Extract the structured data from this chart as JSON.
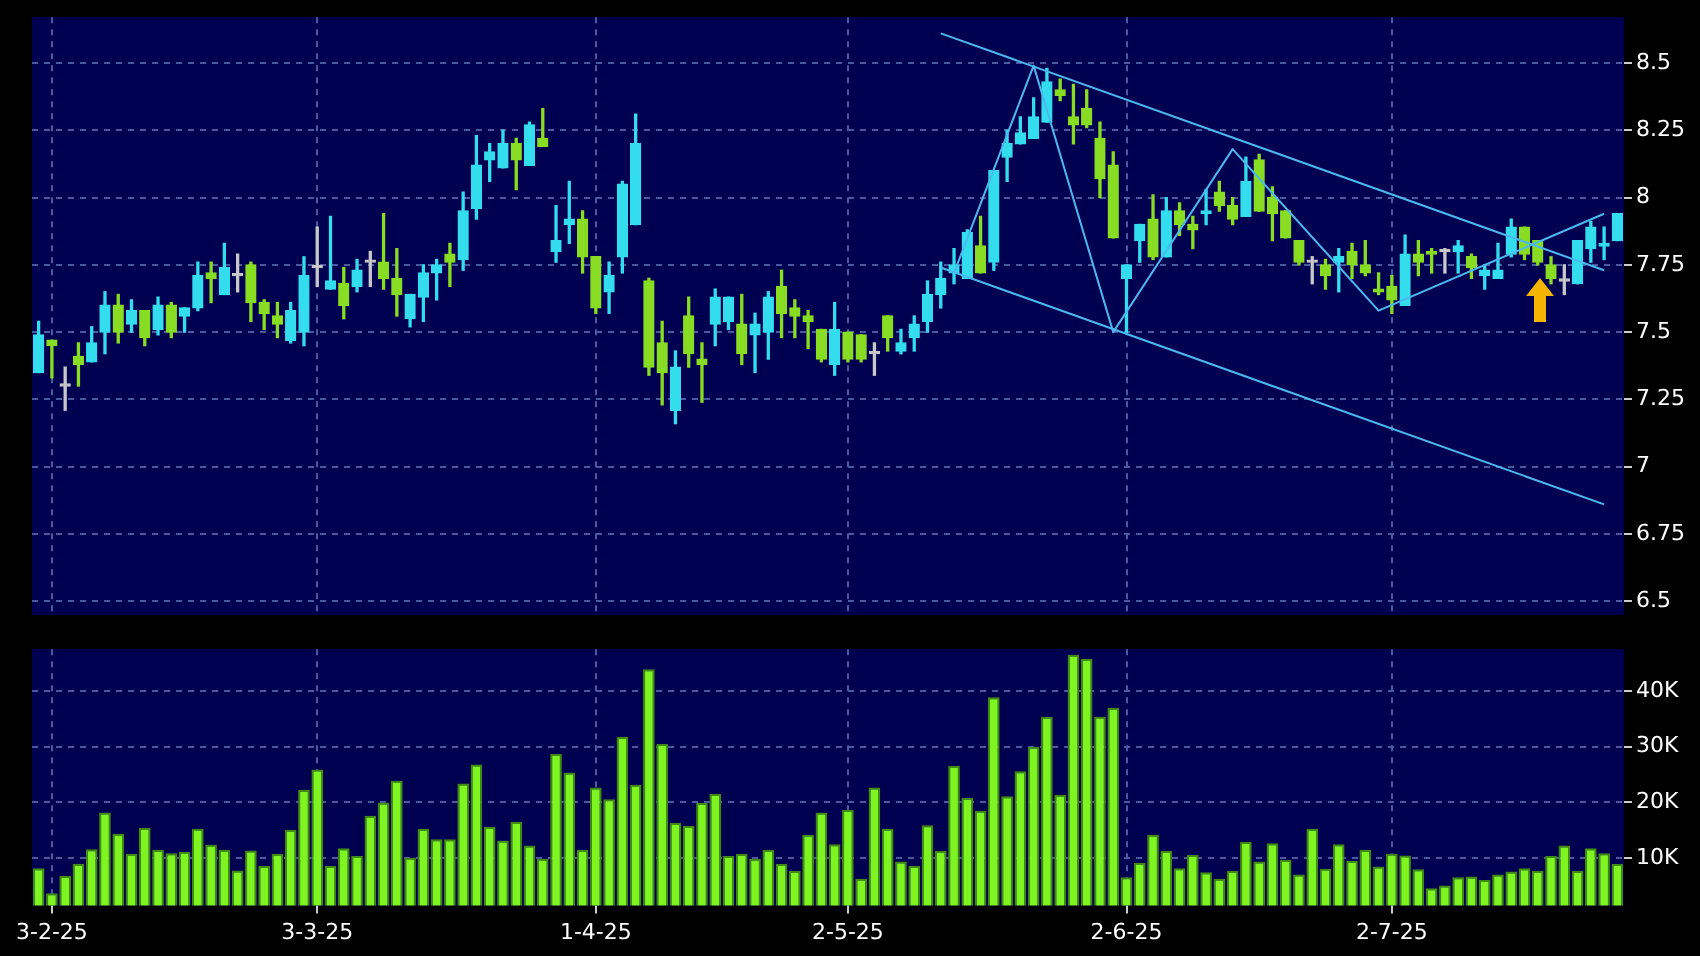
{
  "chart_data": [
    {
      "type": "candlestick",
      "categories": [
        null,
        null,
        null,
        null,
        null,
        null,
        null,
        null,
        null,
        null,
        null,
        null,
        null,
        null,
        null,
        null,
        null,
        null,
        null,
        null,
        null,
        null,
        null,
        null,
        null,
        null,
        null,
        null,
        null,
        null,
        null,
        null,
        null,
        null,
        null,
        null,
        null,
        null,
        null,
        null,
        null,
        null,
        null,
        null,
        null,
        null,
        null,
        null,
        null,
        null,
        null,
        null,
        null,
        null,
        null,
        null,
        null,
        null,
        null,
        null,
        null,
        null,
        null,
        null,
        null,
        null,
        null,
        null,
        null,
        null,
        null,
        null,
        null,
        null,
        null,
        null,
        null,
        null,
        null,
        null,
        null,
        null,
        null,
        null,
        null,
        null,
        null,
        null,
        null,
        null,
        null,
        null,
        null,
        null,
        null,
        null,
        null,
        null,
        null,
        null,
        null,
        null,
        null,
        null,
        null,
        null,
        null,
        null,
        null,
        null,
        null,
        null,
        null,
        null,
        null,
        null,
        null,
        null,
        null,
        null
      ],
      "ohlc": [
        [
          7.35,
          7.54,
          7.35,
          7.49
        ],
        [
          7.47,
          7.47,
          7.33,
          7.45
        ],
        [
          7.3,
          7.37,
          7.21,
          7.3
        ],
        [
          7.41,
          7.46,
          7.3,
          7.38
        ],
        [
          7.39,
          7.52,
          7.39,
          7.46
        ],
        [
          7.5,
          7.65,
          7.42,
          7.6
        ],
        [
          7.6,
          7.64,
          7.46,
          7.5
        ],
        [
          7.53,
          7.62,
          7.5,
          7.58
        ],
        [
          7.58,
          7.58,
          7.45,
          7.48
        ],
        [
          7.51,
          7.63,
          7.49,
          7.6
        ],
        [
          7.6,
          7.61,
          7.48,
          7.5
        ],
        [
          7.56,
          7.59,
          7.5,
          7.59
        ],
        [
          7.59,
          7.76,
          7.58,
          7.71
        ],
        [
          7.72,
          7.76,
          7.61,
          7.7
        ],
        [
          7.64,
          7.83,
          7.64,
          7.74
        ],
        [
          7.71,
          7.79,
          7.65,
          7.71
        ],
        [
          7.75,
          7.76,
          7.54,
          7.61
        ],
        [
          7.61,
          7.62,
          7.51,
          7.57
        ],
        [
          7.56,
          7.61,
          7.48,
          7.53
        ],
        [
          7.47,
          7.61,
          7.46,
          7.58
        ],
        [
          7.5,
          7.78,
          7.45,
          7.71
        ],
        [
          7.74,
          7.89,
          7.67,
          7.74
        ],
        [
          7.66,
          7.93,
          7.66,
          7.69
        ],
        [
          7.68,
          7.74,
          7.55,
          7.6
        ],
        [
          7.67,
          7.77,
          7.65,
          7.73
        ],
        [
          7.76,
          7.8,
          7.67,
          7.76
        ],
        [
          7.76,
          7.94,
          7.66,
          7.7
        ],
        [
          7.7,
          7.81,
          7.56,
          7.64
        ],
        [
          7.55,
          7.64,
          7.52,
          7.64
        ],
        [
          7.63,
          7.75,
          7.54,
          7.72
        ],
        [
          7.72,
          7.77,
          7.62,
          7.75
        ],
        [
          7.79,
          7.83,
          7.67,
          7.76
        ],
        [
          7.77,
          8.02,
          7.73,
          7.95
        ],
        [
          7.96,
          8.23,
          7.92,
          8.12
        ],
        [
          8.14,
          8.2,
          8.06,
          8.17
        ],
        [
          8.11,
          8.25,
          8.11,
          8.2
        ],
        [
          8.2,
          8.22,
          8.03,
          8.14
        ],
        [
          8.12,
          8.28,
          8.12,
          8.27
        ],
        [
          8.22,
          8.33,
          8.19,
          8.19
        ],
        [
          7.8,
          7.97,
          7.76,
          7.84
        ],
        [
          7.9,
          8.06,
          7.83,
          7.92
        ],
        [
          7.92,
          7.95,
          7.72,
          7.78
        ],
        [
          7.78,
          7.78,
          7.57,
          7.59
        ],
        [
          7.65,
          7.76,
          7.57,
          7.71
        ],
        [
          7.78,
          8.06,
          7.72,
          8.05
        ],
        [
          7.9,
          8.31,
          7.9,
          8.2
        ],
        [
          7.69,
          7.7,
          7.34,
          7.37
        ],
        [
          7.46,
          7.54,
          7.23,
          7.35
        ],
        [
          7.21,
          7.43,
          7.16,
          7.37
        ],
        [
          7.56,
          7.63,
          7.37,
          7.42
        ],
        [
          7.4,
          7.46,
          7.24,
          7.38
        ],
        [
          7.53,
          7.66,
          7.45,
          7.63
        ],
        [
          7.54,
          7.63,
          7.51,
          7.63
        ],
        [
          7.53,
          7.64,
          7.38,
          7.42
        ],
        [
          7.49,
          7.57,
          7.35,
          7.53
        ],
        [
          7.5,
          7.65,
          7.4,
          7.63
        ],
        [
          7.67,
          7.73,
          7.48,
          7.57
        ],
        [
          7.59,
          7.62,
          7.48,
          7.56
        ],
        [
          7.56,
          7.58,
          7.44,
          7.54
        ],
        [
          7.51,
          7.51,
          7.39,
          7.4
        ],
        [
          7.38,
          7.61,
          7.34,
          7.51
        ],
        [
          7.5,
          7.5,
          7.39,
          7.4
        ],
        [
          7.49,
          7.49,
          7.39,
          7.4
        ],
        [
          7.42,
          7.46,
          7.34,
          7.42
        ],
        [
          7.56,
          7.56,
          7.43,
          7.48
        ],
        [
          7.43,
          7.51,
          7.42,
          7.46
        ],
        [
          7.48,
          7.56,
          7.43,
          7.53
        ],
        [
          7.54,
          7.69,
          7.5,
          7.64
        ],
        [
          7.64,
          7.76,
          7.59,
          7.7
        ],
        [
          7.72,
          7.81,
          7.68,
          7.75
        ],
        [
          7.7,
          7.88,
          7.7,
          7.87
        ],
        [
          7.82,
          7.93,
          7.72,
          7.72
        ],
        [
          7.76,
          8.1,
          7.73,
          8.1
        ],
        [
          8.15,
          8.25,
          8.06,
          8.2
        ],
        [
          8.2,
          8.3,
          8.2,
          8.24
        ],
        [
          8.22,
          8.37,
          8.22,
          8.3
        ],
        [
          8.28,
          8.48,
          8.28,
          8.43
        ],
        [
          8.4,
          8.44,
          8.36,
          8.38
        ],
        [
          8.3,
          8.42,
          8.2,
          8.27
        ],
        [
          8.33,
          8.4,
          8.26,
          8.27
        ],
        [
          8.22,
          8.28,
          8.0,
          8.07
        ],
        [
          8.12,
          8.17,
          7.85,
          7.85
        ],
        [
          7.7,
          7.75,
          7.5,
          7.75
        ],
        [
          7.84,
          7.9,
          7.76,
          7.9
        ],
        [
          7.92,
          8.01,
          7.77,
          7.78
        ],
        [
          7.78,
          8.0,
          7.78,
          7.95
        ],
        [
          7.95,
          7.98,
          7.86,
          7.9
        ],
        [
          7.9,
          7.93,
          7.81,
          7.88
        ],
        [
          7.94,
          8.03,
          7.9,
          7.95
        ],
        [
          8.02,
          8.06,
          7.95,
          7.97
        ],
        [
          7.97,
          8.0,
          7.9,
          7.92
        ],
        [
          7.93,
          8.15,
          7.93,
          8.06
        ],
        [
          8.14,
          8.16,
          7.95,
          7.95
        ],
        [
          8.0,
          8.04,
          7.84,
          7.94
        ],
        [
          7.95,
          7.95,
          7.85,
          7.85
        ],
        [
          7.84,
          7.84,
          7.75,
          7.76
        ],
        [
          7.76,
          7.78,
          7.68,
          7.76
        ],
        [
          7.75,
          7.77,
          7.66,
          7.71
        ],
        [
          7.76,
          7.81,
          7.65,
          7.78
        ],
        [
          7.8,
          7.83,
          7.7,
          7.75
        ],
        [
          7.75,
          7.84,
          7.71,
          7.72
        ],
        [
          7.66,
          7.72,
          7.64,
          7.65
        ],
        [
          7.67,
          7.71,
          7.57,
          7.62
        ],
        [
          7.6,
          7.86,
          7.6,
          7.79
        ],
        [
          7.79,
          7.84,
          7.71,
          7.76
        ],
        [
          7.8,
          7.81,
          7.72,
          7.79
        ],
        [
          7.8,
          7.81,
          7.72,
          7.8
        ],
        [
          7.8,
          7.84,
          7.72,
          7.82
        ],
        [
          7.78,
          7.79,
          7.7,
          7.74
        ],
        [
          7.71,
          7.75,
          7.66,
          7.73
        ],
        [
          7.7,
          7.83,
          7.7,
          7.73
        ],
        [
          7.79,
          7.92,
          7.78,
          7.89
        ],
        [
          7.89,
          7.89,
          7.77,
          7.79
        ],
        [
          7.84,
          7.84,
          7.75,
          7.76
        ],
        [
          7.75,
          7.78,
          7.68,
          7.7
        ],
        [
          7.69,
          7.75,
          7.64,
          7.69
        ],
        [
          7.68,
          7.84,
          7.68,
          7.84
        ],
        [
          7.81,
          7.91,
          7.76,
          7.89
        ],
        [
          7.82,
          7.89,
          7.77,
          7.83
        ],
        [
          7.84,
          7.94,
          7.84,
          7.94
        ]
      ],
      "colors": [
        "#33ddee",
        "#88dd22",
        "#c8c8c8",
        "#88dd22",
        "#33ddee",
        "#33ddee",
        "#88dd22",
        "#33ddee",
        "#88dd22",
        "#33ddee",
        "#88dd22",
        "#33ddee",
        "#33ddee",
        "#88dd22",
        "#33ddee",
        "#c8c8c8",
        "#88dd22",
        "#88dd22",
        "#88dd22",
        "#33ddee",
        "#33ddee",
        "#c8c8c8",
        "#33ddee",
        "#88dd22",
        "#33ddee",
        "#c8c8c8",
        "#88dd22",
        "#88dd22",
        "#33ddee",
        "#33ddee",
        "#33ddee",
        "#88dd22",
        "#33ddee",
        "#33ddee",
        "#33ddee",
        "#33ddee",
        "#88dd22",
        "#33ddee",
        "#88dd22",
        "#33ddee",
        "#33ddee",
        "#88dd22",
        "#88dd22",
        "#33ddee",
        "#33ddee",
        "#33ddee",
        "#88dd22",
        "#88dd22",
        "#33ddee",
        "#88dd22",
        "#88dd22",
        "#33ddee",
        "#33ddee",
        "#88dd22",
        "#33ddee",
        "#33ddee",
        "#88dd22",
        "#88dd22",
        "#88dd22",
        "#88dd22",
        "#33ddee",
        "#88dd22",
        "#88dd22",
        "#c8c8c8",
        "#88dd22",
        "#33ddee",
        "#33ddee",
        "#33ddee",
        "#33ddee",
        "#33ddee",
        "#33ddee",
        "#88dd22",
        "#33ddee",
        "#33ddee",
        "#33ddee",
        "#33ddee",
        "#33ddee",
        "#88dd22",
        "#88dd22",
        "#88dd22",
        "#88dd22",
        "#88dd22",
        "#33ddee",
        "#33ddee",
        "#88dd22",
        "#33ddee",
        "#88dd22",
        "#88dd22",
        "#33ddee",
        "#88dd22",
        "#88dd22",
        "#33ddee",
        "#88dd22",
        "#88dd22",
        "#88dd22",
        "#88dd22",
        "#c8c8c8",
        "#88dd22",
        "#33ddee",
        "#88dd22",
        "#88dd22",
        "#88dd22",
        "#88dd22",
        "#33ddee",
        "#88dd22",
        "#88dd22",
        "#c8c8c8",
        "#33ddee",
        "#88dd22",
        "#33ddee",
        "#33ddee",
        "#33ddee",
        "#88dd22",
        "#88dd22",
        "#88dd22",
        "#c8c8c8",
        "#33ddee",
        "#33ddee",
        "#33ddee",
        "#33ddee"
      ],
      "series": [
        {
          "type": "line",
          "color": "#4cb8f0",
          "values": [
            null,
            null,
            null,
            null,
            null,
            null,
            null,
            null,
            null,
            null,
            null,
            null,
            null,
            null,
            null,
            null,
            null,
            null,
            null,
            null,
            null,
            null,
            null,
            null,
            null,
            null,
            null,
            null,
            null,
            null,
            null,
            null,
            null,
            null,
            null,
            null,
            null,
            null,
            null,
            null,
            null,
            null,
            null,
            null,
            null,
            null,
            null,
            null,
            null,
            null,
            null,
            null,
            null,
            null,
            null,
            null,
            null,
            null,
            null,
            null,
            null,
            null,
            null,
            null,
            null,
            null,
            null,
            null,
            8.61,
            null,
            null,
            null,
            null,
            null,
            null,
            null,
            null,
            null,
            null,
            null,
            null,
            null,
            null,
            null,
            null,
            null,
            null,
            null,
            null,
            null,
            null,
            null,
            null,
            null,
            null,
            null,
            null,
            null,
            null,
            null,
            null,
            null,
            null,
            null,
            null,
            null,
            null,
            null,
            null,
            null,
            null,
            null,
            null,
            null,
            null,
            null,
            null,
            null,
            7.73,
            null
          ]
        },
        {
          "type": "line",
          "color": "#4cb8f0",
          "values": [
            null,
            null,
            null,
            null,
            null,
            null,
            null,
            null,
            null,
            null,
            null,
            null,
            null,
            null,
            null,
            null,
            null,
            null,
            null,
            null,
            null,
            null,
            null,
            null,
            null,
            null,
            null,
            null,
            null,
            null,
            null,
            null,
            null,
            null,
            null,
            null,
            null,
            null,
            null,
            null,
            null,
            null,
            null,
            null,
            null,
            null,
            null,
            null,
            null,
            null,
            null,
            null,
            null,
            null,
            null,
            null,
            null,
            null,
            null,
            null,
            null,
            null,
            null,
            null,
            null,
            null,
            null,
            null,
            7.74,
            null,
            null,
            null,
            null,
            null,
            null,
            null,
            null,
            null,
            null,
            null,
            null,
            null,
            null,
            null,
            null,
            null,
            null,
            null,
            null,
            null,
            null,
            null,
            null,
            null,
            null,
            null,
            null,
            null,
            null,
            null,
            null,
            null,
            null,
            null,
            null,
            null,
            null,
            null,
            null,
            null,
            null,
            null,
            null,
            null,
            null,
            null,
            null,
            null,
            6.86,
            null
          ]
        },
        {
          "type": "line",
          "color": "#4cb8f0",
          "values": [
            null,
            null,
            null,
            null,
            null,
            null,
            null,
            null,
            null,
            null,
            null,
            null,
            null,
            null,
            null,
            null,
            null,
            null,
            null,
            null,
            null,
            null,
            null,
            null,
            null,
            null,
            null,
            null,
            null,
            null,
            null,
            null,
            null,
            null,
            null,
            null,
            null,
            null,
            null,
            null,
            null,
            null,
            null,
            null,
            null,
            null,
            null,
            null,
            null,
            null,
            null,
            null,
            null,
            null,
            null,
            null,
            null,
            null,
            null,
            null,
            null,
            null,
            null,
            null,
            null,
            null,
            null,
            null,
            null,
            7.72,
            null,
            null,
            null,
            null,
            null,
            8.49,
            null,
            null,
            null,
            null,
            null,
            7.5,
            null,
            null,
            null,
            null,
            null,
            null,
            null,
            null,
            8.18,
            null,
            null,
            null,
            null,
            null,
            null,
            null,
            null,
            null,
            null,
            7.58,
            null,
            null,
            null,
            null,
            null,
            null,
            null,
            null,
            null,
            null,
            null,
            null,
            null,
            null,
            null,
            null,
            7.94,
            null
          ]
        }
      ],
      "ylim": [
        6.45,
        8.67
      ],
      "yticks": [
        6.5,
        6.75,
        7,
        7.25,
        7.5,
        7.75,
        8,
        8.25,
        8.5
      ],
      "grid": true,
      "tick_labels": "y"
    },
    {
      "type": "bar",
      "categories": [
        null,
        "3-2-25",
        null,
        null,
        null,
        null,
        null,
        null,
        null,
        null,
        null,
        null,
        null,
        null,
        null,
        null,
        null,
        null,
        null,
        null,
        null,
        "3-3-25",
        null,
        null,
        null,
        null,
        null,
        null,
        null,
        null,
        null,
        null,
        null,
        null,
        null,
        null,
        null,
        null,
        null,
        null,
        null,
        null,
        "1-4-25",
        null,
        null,
        null,
        null,
        null,
        null,
        null,
        null,
        null,
        null,
        null,
        null,
        null,
        null,
        null,
        null,
        null,
        null,
        "2-5-25",
        null,
        null,
        null,
        null,
        null,
        null,
        null,
        null,
        null,
        null,
        null,
        null,
        null,
        null,
        null,
        null,
        null,
        null,
        null,
        null,
        "2-6-25",
        null,
        null,
        null,
        null,
        null,
        null,
        null,
        null,
        null,
        null,
        null,
        null,
        null,
        null,
        null,
        null,
        null,
        null,
        null,
        "2-7-25",
        null,
        null,
        null,
        null,
        null,
        null,
        null,
        null,
        null,
        null,
        null,
        null,
        null,
        null,
        null,
        null,
        null
      ],
      "values": [
        8200,
        3700,
        6800,
        9000,
        11600,
        18200,
        14400,
        10800,
        15400,
        11500,
        10900,
        11100,
        15300,
        12400,
        11500,
        7800,
        11400,
        8600,
        10800,
        15100,
        22300,
        25900,
        8600,
        11800,
        10400,
        17600,
        20000,
        23900,
        10100,
        15300,
        13400,
        13400,
        23400,
        26800,
        15600,
        13200,
        16500,
        12300,
        9900,
        28700,
        25400,
        11500,
        22700,
        20600,
        31800,
        23200,
        43900,
        30500,
        16300,
        15800,
        19900,
        21500,
        10400,
        10800,
        9900,
        11500,
        9000,
        7700,
        14200,
        18200,
        12500,
        18700,
        6300,
        22700,
        15300,
        9400,
        8600,
        15900,
        11300,
        26600,
        20800,
        18500,
        38900,
        21100,
        25600,
        30000,
        35400,
        21400,
        46500,
        45800,
        35400,
        37000,
        6600,
        9200,
        14200,
        11300,
        8200,
        10600,
        7500,
        6300,
        7700,
        12900,
        9400,
        12700,
        9700,
        7100,
        15300,
        8100,
        12500,
        9500,
        11500,
        8500,
        10800,
        10500,
        8000,
        4600,
        5100,
        6600,
        6700,
        6100,
        7100,
        7600,
        8200,
        7700,
        10400,
        12300,
        7700,
        11800,
        10900,
        9000
      ],
      "color": "#7ef520",
      "ylim": [
        1500,
        47500
      ],
      "yticks": [
        {
          "value": 10000,
          "label": "10K"
        },
        {
          "value": 20000,
          "label": "20K"
        },
        {
          "value": 30000,
          "label": "30K"
        },
        {
          "value": 40000,
          "label": "40K"
        }
      ],
      "grid": true
    }
  ]
}
